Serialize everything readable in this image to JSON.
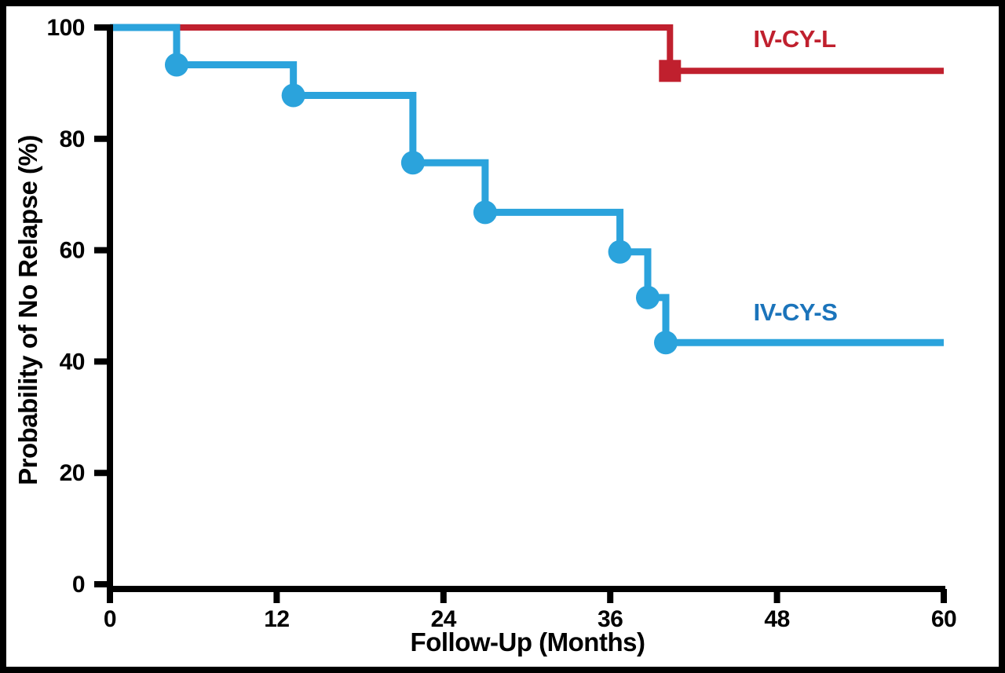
{
  "figure": {
    "kind": "Kaplan-Meier survival plot",
    "background_color": "#ffffff",
    "frame_color": "#000000",
    "axis_color": "#000000"
  },
  "chart_data": {
    "type": "line",
    "style": "kaplan-meier-step",
    "title": "",
    "xlabel": "Follow-Up (Months)",
    "ylabel": "Probability of No Relapse (%)",
    "xlim": [
      0,
      60
    ],
    "ylim": [
      0,
      100
    ],
    "x_ticks": [
      "0",
      "12",
      "24",
      "36",
      "48",
      "60"
    ],
    "y_ticks": [
      "0",
      "20",
      "40",
      "60",
      "80",
      "100"
    ],
    "grid": false,
    "legend_position": "inline-annotation",
    "series": [
      {
        "name": "IV-CY-L",
        "line_color": "#C0202E",
        "label_color": "#C0202E",
        "marker": "square",
        "start": [
          0,
          100
        ],
        "events": [
          [
            40.3,
            92.2
          ]
        ],
        "end_month": 60,
        "final_value": 92.2
      },
      {
        "name": "IV-CY-S",
        "line_color": "#2BA3DC",
        "label_color": "#1B74BB",
        "marker": "circle",
        "start": [
          0,
          100
        ],
        "events": [
          [
            4.8,
            93.3
          ],
          [
            13.2,
            87.8
          ],
          [
            21.8,
            75.7
          ],
          [
            27,
            66.8
          ],
          [
            36.7,
            59.7
          ],
          [
            38.7,
            51.5
          ],
          [
            40,
            43.4
          ]
        ],
        "end_month": 60,
        "final_value": 43.4
      }
    ]
  }
}
